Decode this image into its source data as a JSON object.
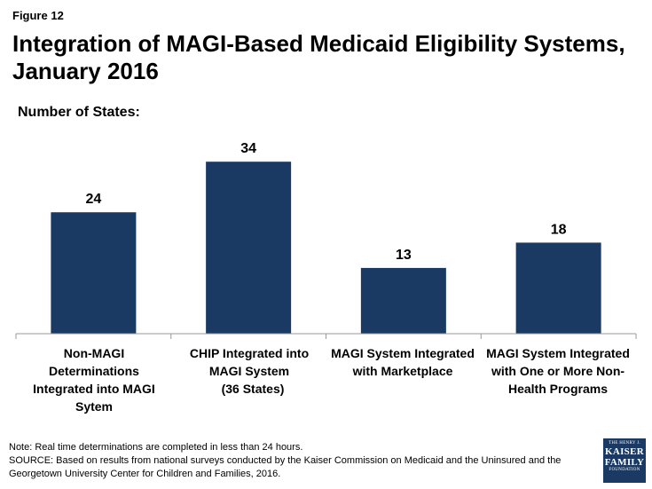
{
  "figure_label": "Figure 12",
  "chart_data": {
    "type": "bar",
    "title": "Integration of MAGI-Based Medicaid Eligibility Systems, January 2016",
    "subtitle": "Number of States:",
    "categories": [
      {
        "line1": "Non-MAGI Determinations Integrated into MAGI Sytem",
        "line2": ""
      },
      {
        "line1": "CHIP Integrated into MAGI System",
        "line2": "(36 States)"
      },
      {
        "line1": "MAGI System Integrated with Marketplace",
        "line2": ""
      },
      {
        "line1": "MAGI System Integrated with One or More Non-Health Programs",
        "line2": ""
      }
    ],
    "values": [
      24,
      34,
      13,
      18
    ],
    "data_labels": [
      "24",
      "34",
      "13",
      "18"
    ],
    "ylim": [
      0,
      40
    ],
    "xlabel": "",
    "ylabel": "",
    "bar_color": "#1a3a63"
  },
  "footer": {
    "note": "Note: Real time determinations are completed in less than 24 hours.",
    "source": "SOURCE: Based on results from national surveys conducted by the Kaiser Commission on Medicaid and the Uninsured and the Georgetown University Center for Children and Families, 2016."
  },
  "logo": {
    "line1": "THE HENRY J.",
    "line2": "KAISER",
    "line3": "FAMILY",
    "line4": "FOUNDATION"
  }
}
